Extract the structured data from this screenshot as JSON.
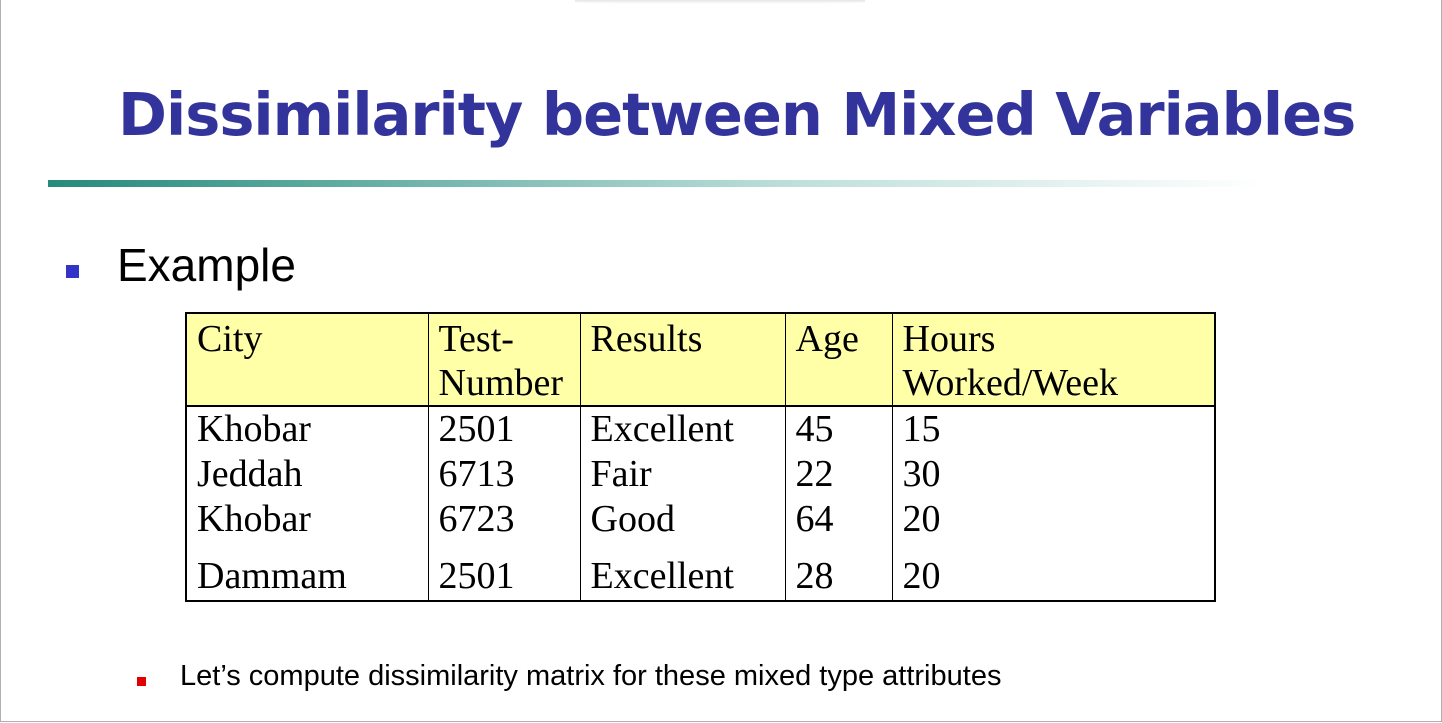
{
  "slide": {
    "title": "Dissimilarity between Mixed Variables",
    "bullet": "Example",
    "sub_bullet": "Let’s compute dissimilarity matrix for these mixed type attributes",
    "colors": {
      "title": "#33339c",
      "bullet_square": "#3333c8",
      "sub_bullet_square": "#e00000",
      "table_header_bg": "#ffffa8",
      "rule_start": "#258a7c"
    }
  },
  "table": {
    "headers": {
      "city": "City",
      "test_number_line1": "Test-",
      "test_number_line2": "Number",
      "results": "Results",
      "age": "Age",
      "hours_line1": "Hours",
      "hours_line2": "Worked/Week"
    },
    "rows": [
      {
        "city": "Khobar",
        "test_number": "2501",
        "results": "Excellent",
        "age": "45",
        "hours": "15"
      },
      {
        "city": "Jeddah",
        "test_number": "6713",
        "results": "Fair",
        "age": "22",
        "hours": "30"
      },
      {
        "city": "Khobar",
        "test_number": "6723",
        "results": "Good",
        "age": "64",
        "hours": "20"
      },
      {
        "city": "Dammam",
        "test_number": "2501",
        "results": "Excellent",
        "age": "28",
        "hours": "20"
      }
    ]
  }
}
